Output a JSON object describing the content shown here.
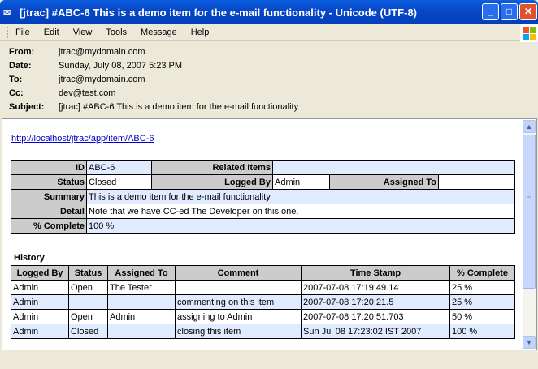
{
  "window": {
    "title": "[jtrac] #ABC-6 This is a demo item for the e-mail functionality - Unicode (UTF-8)"
  },
  "menu": [
    "File",
    "Edit",
    "View",
    "Tools",
    "Message",
    "Help"
  ],
  "headers": [
    {
      "label": "From:",
      "value": "jtrac@mydomain.com"
    },
    {
      "label": "Date:",
      "value": "Sunday, July 08, 2007 5:23 PM"
    },
    {
      "label": "To:",
      "value": "jtrac@mydomain.com"
    },
    {
      "label": "Cc:",
      "value": "dev@test.com"
    },
    {
      "label": "Subject:",
      "value": "[jtrac] #ABC-6 This is a demo item for the e-mail functionality"
    }
  ],
  "link": "http://localhost/jtrac/app/item/ABC-6",
  "item": {
    "id_label": "ID",
    "id": "ABC-6",
    "related_label": "Related Items",
    "related": "",
    "status_label": "Status",
    "status": "Closed",
    "logged_by_label": "Logged By",
    "logged_by": "Admin",
    "assigned_to_label": "Assigned To",
    "assigned_to": "",
    "summary_label": "Summary",
    "summary": "This is a demo item for the e-mail functionality",
    "detail_label": "Detail",
    "detail": "Note that we have CC-ed The Developer on this one.",
    "complete_label": "% Complete",
    "complete": "100 %"
  },
  "history": {
    "title": "History",
    "columns": [
      "Logged By",
      "Status",
      "Assigned To",
      "Comment",
      "Time Stamp",
      "% Complete"
    ],
    "rows": [
      [
        "Admin",
        "Open",
        "The Tester",
        "",
        "2007-07-08 17:19:49.14",
        "25 %"
      ],
      [
        "Admin",
        "",
        "",
        "commenting on this item",
        "2007-07-08 17:20:21.5",
        "25 %"
      ],
      [
        "Admin",
        "Open",
        "Admin",
        "assigning to Admin",
        "2007-07-08 17:20:51.703",
        "50 %"
      ],
      [
        "Admin",
        "Closed",
        "",
        "closing this item",
        "Sun Jul 08 17:23:02 IST 2007",
        "100 %"
      ]
    ]
  }
}
